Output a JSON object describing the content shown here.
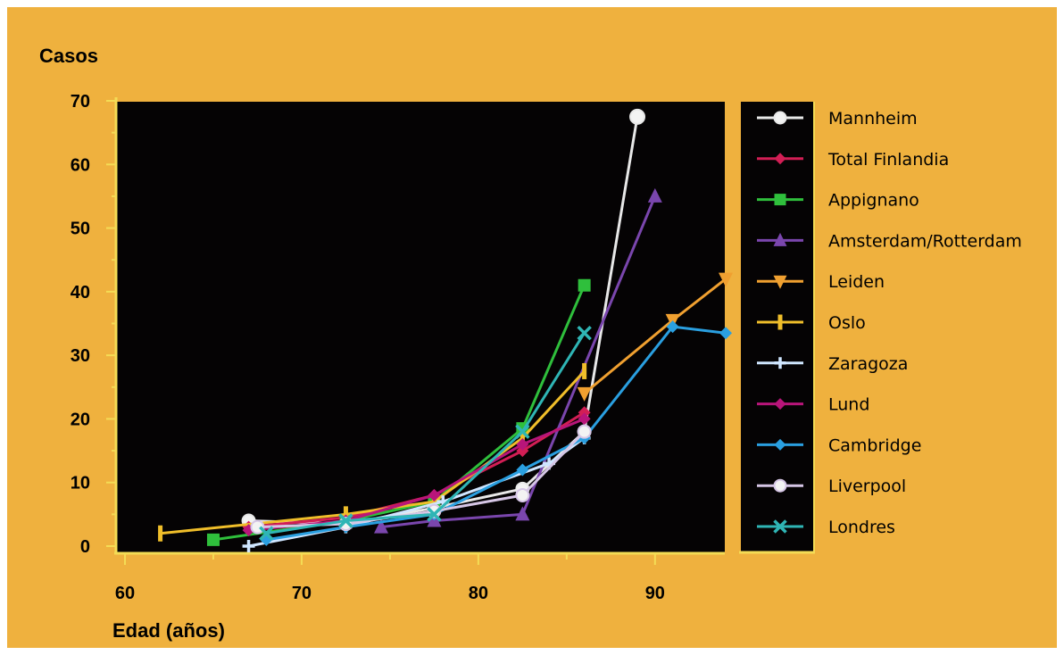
{
  "chart_data": {
    "type": "line",
    "ylabel": "Casos",
    "xlabel": "Edad (años)",
    "xlim": [
      60,
      94
    ],
    "ylim": [
      0,
      70
    ],
    "xticks": [
      60,
      70,
      80,
      90
    ],
    "yticks": [
      0,
      10,
      20,
      30,
      40,
      50,
      60,
      70
    ],
    "grid": false,
    "legend_position": "right",
    "background": "#000000",
    "frame_color": "#efb13e",
    "series": [
      {
        "name": "Mannheim",
        "color": "#e8e8e8",
        "marker": "circle-open",
        "points": [
          [
            67,
            4
          ],
          [
            72.5,
            3.5
          ],
          [
            77.5,
            6
          ],
          [
            82.5,
            9
          ],
          [
            86,
            18
          ],
          [
            89,
            67.5
          ]
        ]
      },
      {
        "name": "Total Finlandia",
        "color": "#d21e55",
        "marker": "diamond",
        "points": [
          [
            67,
            3
          ],
          [
            72.5,
            4.5
          ],
          [
            77.5,
            8
          ],
          [
            82.5,
            15
          ],
          [
            86,
            21
          ]
        ]
      },
      {
        "name": "Appignano",
        "color": "#2fbf3c",
        "marker": "square",
        "points": [
          [
            65,
            1
          ],
          [
            72.5,
            4
          ],
          [
            77.5,
            7
          ],
          [
            82.5,
            18.5
          ],
          [
            86,
            41
          ]
        ]
      },
      {
        "name": "Amsterdam/Rotterdam",
        "color": "#7a46ad",
        "marker": "triangle-up",
        "points": [
          [
            74.5,
            3
          ],
          [
            77.5,
            4
          ],
          [
            82.5,
            5
          ],
          [
            90,
            55
          ]
        ]
      },
      {
        "name": "Leiden",
        "color": "#f0a030",
        "marker": "triangle-down",
        "points": [
          [
            86,
            24
          ],
          [
            91,
            35.5
          ],
          [
            94,
            42
          ]
        ]
      },
      {
        "name": "Oslo",
        "color": "#f0be2a",
        "marker": "bar",
        "points": [
          [
            62,
            2
          ],
          [
            72.5,
            5
          ],
          [
            77.5,
            7
          ],
          [
            82.5,
            17
          ],
          [
            86,
            27.5
          ]
        ]
      },
      {
        "name": "Zaragoza",
        "color": "#cfe6ff",
        "marker": "cross",
        "points": [
          [
            67,
            0
          ],
          [
            72.5,
            3
          ],
          [
            78,
            7
          ],
          [
            84,
            13
          ],
          [
            86,
            17
          ]
        ]
      },
      {
        "name": "Lund",
        "color": "#b8157a",
        "marker": "diamond",
        "points": [
          [
            67,
            2.5
          ],
          [
            72.5,
            4
          ],
          [
            77.5,
            8
          ],
          [
            82.5,
            16
          ],
          [
            86,
            20
          ]
        ]
      },
      {
        "name": "Cambridge",
        "color": "#2a9fe0",
        "marker": "diamond",
        "points": [
          [
            68,
            1
          ],
          [
            72.5,
            3
          ],
          [
            77.5,
            5
          ],
          [
            82.5,
            12
          ],
          [
            86,
            17
          ],
          [
            91,
            34.5
          ],
          [
            94,
            33.5
          ]
        ]
      },
      {
        "name": "Liverpool",
        "color": "#d6c6e6",
        "marker": "circle-open",
        "points": [
          [
            67.5,
            3
          ],
          [
            72.5,
            3.5
          ],
          [
            77.5,
            5.5
          ],
          [
            82.5,
            8
          ],
          [
            86,
            18
          ]
        ]
      },
      {
        "name": "Londres",
        "color": "#2fb5b5",
        "marker": "x",
        "points": [
          [
            68,
            2
          ],
          [
            72.5,
            4
          ],
          [
            77.5,
            5
          ],
          [
            82.5,
            18
          ],
          [
            86,
            33.5
          ]
        ]
      }
    ]
  }
}
